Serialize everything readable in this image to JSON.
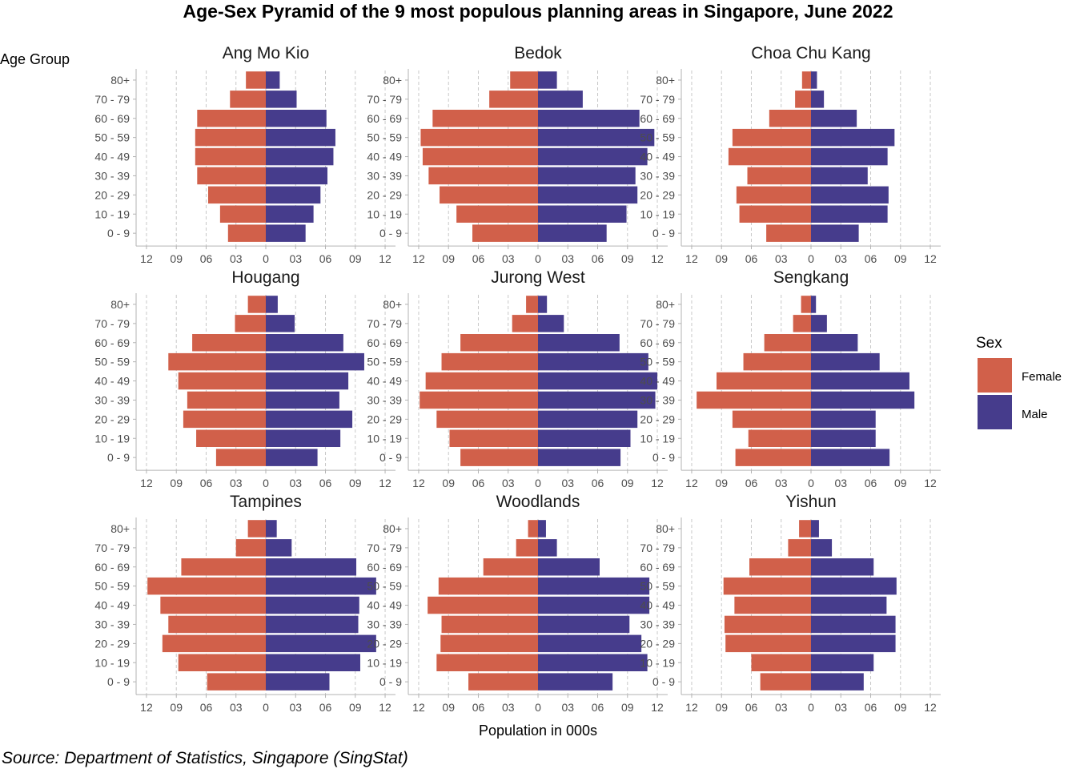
{
  "chart_data": {
    "type": "bar",
    "subtype": "population-pyramid-facets",
    "title": "Age-Sex Pyramid of the 9 most populous planning areas in Singapore, June 2022",
    "xlabel": "Population in 000s",
    "ylabel": "Age Group",
    "caption": "Source: Department of Statistics, Singapore (SingStat)",
    "legend": {
      "title": "Sex",
      "position": "right",
      "items": [
        {
          "label": "Female",
          "color": "#D1604A"
        },
        {
          "label": "Male",
          "color": "#463C8C"
        }
      ]
    },
    "grid": "vertical dashed at major ticks",
    "xlim": [
      -13,
      13
    ],
    "x_ticks": [
      -12,
      -9,
      -6,
      -3,
      0,
      3,
      6,
      9,
      12
    ],
    "x_tick_labels": [
      "12",
      "09",
      "06",
      "03",
      "0",
      "03",
      "06",
      "09",
      "12"
    ],
    "categories": [
      "0 - 9",
      "10 - 19",
      "20 - 29",
      "30 - 39",
      "40 - 49",
      "50 - 59",
      "60 - 69",
      "70 - 79",
      "80+"
    ],
    "series_names": [
      "Female",
      "Male"
    ],
    "facets": [
      {
        "name": "Ang Mo Kio",
        "female": [
          3.8,
          4.6,
          5.8,
          6.9,
          7.1,
          7.1,
          6.9,
          3.6,
          2.0
        ],
        "male": [
          4.0,
          4.8,
          5.5,
          6.2,
          6.8,
          7.0,
          6.1,
          3.1,
          1.4
        ]
      },
      {
        "name": "Bedok",
        "female": [
          6.6,
          8.2,
          9.9,
          11.0,
          11.6,
          11.8,
          10.6,
          4.9,
          2.8
        ],
        "male": [
          6.9,
          8.9,
          10.0,
          9.8,
          11.0,
          11.7,
          10.2,
          4.5,
          1.9
        ]
      },
      {
        "name": "Choa Chu Kang",
        "female": [
          4.5,
          7.2,
          7.5,
          6.4,
          8.3,
          7.9,
          4.2,
          1.6,
          0.9
        ],
        "male": [
          4.8,
          7.7,
          7.8,
          5.7,
          7.7,
          8.4,
          4.6,
          1.3,
          0.6
        ]
      },
      {
        "name": "Hougang",
        "female": [
          5.0,
          7.0,
          8.3,
          7.9,
          8.8,
          9.8,
          7.4,
          3.1,
          1.8
        ],
        "male": [
          5.2,
          7.5,
          8.7,
          7.4,
          8.3,
          9.9,
          7.8,
          2.9,
          1.2
        ]
      },
      {
        "name": "Jurong West",
        "female": [
          7.8,
          8.9,
          10.2,
          11.9,
          11.3,
          9.7,
          7.8,
          2.6,
          1.2
        ],
        "male": [
          8.3,
          9.3,
          10.0,
          11.8,
          12.0,
          11.1,
          8.2,
          2.6,
          0.9
        ]
      },
      {
        "name": "Sengkang",
        "female": [
          7.6,
          6.3,
          7.9,
          11.5,
          9.5,
          6.8,
          4.7,
          1.8,
          1.0
        ],
        "male": [
          7.9,
          6.5,
          6.5,
          10.4,
          9.9,
          6.9,
          4.7,
          1.6,
          0.5
        ]
      },
      {
        "name": "Tampines",
        "female": [
          5.9,
          8.8,
          10.4,
          9.8,
          10.6,
          11.9,
          8.5,
          3.0,
          1.8
        ],
        "male": [
          6.4,
          9.5,
          11.1,
          9.3,
          9.4,
          11.1,
          9.1,
          2.6,
          1.1
        ]
      },
      {
        "name": "Woodlands",
        "female": [
          7.0,
          10.2,
          9.8,
          9.7,
          11.1,
          10.0,
          5.5,
          2.2,
          1.0
        ],
        "male": [
          7.5,
          11.0,
          10.4,
          9.2,
          11.2,
          11.2,
          6.2,
          1.9,
          0.8
        ]
      },
      {
        "name": "Yishun",
        "female": [
          5.1,
          6.0,
          8.6,
          8.7,
          7.7,
          8.8,
          6.2,
          2.3,
          1.2
        ],
        "male": [
          5.3,
          6.3,
          8.5,
          8.5,
          7.6,
          8.6,
          6.3,
          2.1,
          0.8
        ]
      }
    ]
  }
}
